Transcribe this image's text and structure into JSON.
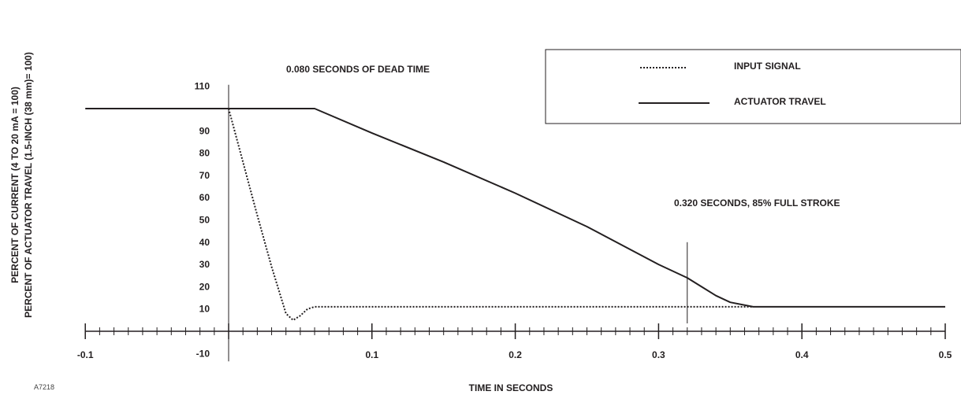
{
  "chart_data": {
    "type": "line",
    "title": "",
    "xlabel": "TIME IN SECONDS",
    "ylabel_lines": [
      "PERCENT OF CURRENT (4 TO 20 mA = 100)",
      "PERCENT OF ACTUATOR TRAVEL (1.5-INCH (38 mm)= 100)"
    ],
    "xlim": [
      -0.1,
      0.5
    ],
    "ylim": [
      -10,
      110
    ],
    "x_ticks": [
      -0.1,
      0.1,
      0.2,
      0.3,
      0.4,
      0.5
    ],
    "x_tick_labels": [
      "-0.1",
      "0.1",
      "0.2",
      "0.3",
      "0.4",
      "0.5"
    ],
    "x_minor_step": 0.01,
    "y_ticks": [
      110,
      90,
      80,
      70,
      60,
      50,
      40,
      30,
      20,
      10,
      -10
    ],
    "y_tick_labels": [
      "110",
      "90",
      "80",
      "70",
      "60",
      "50",
      "40",
      "30",
      "20",
      "10",
      "-10"
    ],
    "grid": false,
    "legend_position": "top-right",
    "series": [
      {
        "name": "INPUT SIGNAL",
        "style": "dotted",
        "x": [
          0.0,
          0.01,
          0.02,
          0.03,
          0.04,
          0.045,
          0.05,
          0.055,
          0.06,
          0.1,
          0.2,
          0.3,
          0.366
        ],
        "y": [
          100,
          76,
          52,
          29,
          8,
          5,
          7,
          10,
          11,
          11,
          11,
          11,
          11
        ]
      },
      {
        "name": "ACTUATOR TRAVEL",
        "style": "solid",
        "x": [
          -0.1,
          0.0,
          0.06,
          0.1,
          0.15,
          0.2,
          0.25,
          0.3,
          0.32,
          0.33,
          0.34,
          0.35,
          0.366,
          0.4,
          0.5
        ],
        "y": [
          100,
          100,
          100,
          89,
          76,
          62,
          47,
          30,
          24,
          20,
          16,
          13,
          11,
          11,
          11
        ]
      }
    ],
    "annotations": [
      {
        "text": "0.080 SECONDS OF DEAD TIME",
        "x": 0.04,
        "y": 118
      },
      {
        "text": "0.320 SECONDS, 85% FULL STROKE",
        "x": 0.37,
        "y": 59
      }
    ],
    "marker_line": {
      "x": 0.32,
      "y_from": 0,
      "y_to": 40
    },
    "figure_code": "A7218"
  },
  "colors": {
    "ink": "#231f20"
  }
}
